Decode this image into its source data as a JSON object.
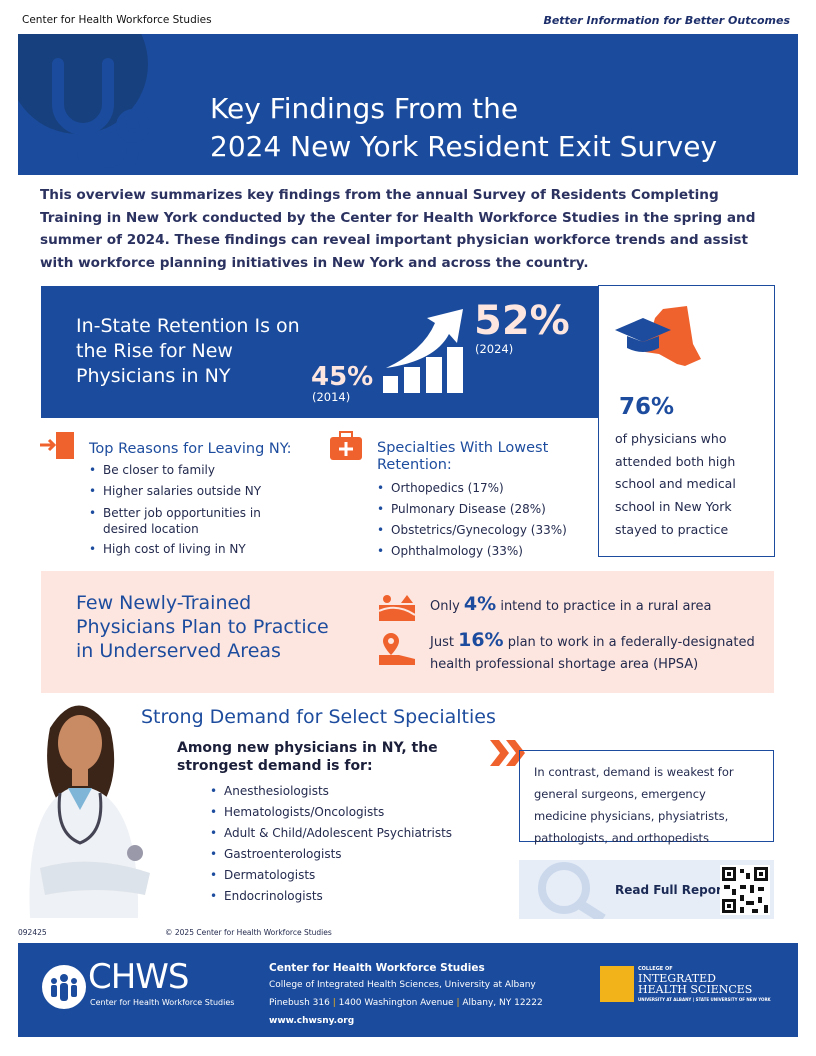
{
  "header": {
    "org": "Center for Health Workforce Studies",
    "tagline": "Better Information for Better Outcomes"
  },
  "banner": {
    "title_line1": "Key Findings From the",
    "title_line2": "2024 New York Resident Exit Survey",
    "icon": "stethoscope-icon"
  },
  "intro": "This overview summarizes key findings from the annual Survey of Residents Completing Training in New York conducted by the Center for Health Workforce Studies in the spring and summer of 2024. These findings can reveal important physician workforce trends and assist with workforce planning initiatives in New York and across the country.",
  "retention": {
    "title": "In-State Retention Is on the Rise for New Physicians in NY",
    "start_value": "45%",
    "start_year": "(2014)",
    "end_value": "52%",
    "end_year": "(2024)",
    "icon": "rising-bar-chart-icon"
  },
  "ny_box": {
    "value": "76%",
    "text": "of physicians who attended both high school and medical school in New York stayed to practice",
    "icon": "ny-state-graduation-cap-icon"
  },
  "leaving": {
    "heading": "Top Reasons for Leaving NY:",
    "icon": "exit-door-icon",
    "items": [
      "Be closer to family",
      "Higher salaries outside NY",
      "Better job opportunities in desired location",
      "High cost of living in NY"
    ]
  },
  "lowest": {
    "heading": "Specialties With Lowest Retention:",
    "icon": "medical-kit-icon",
    "items": [
      "Orthopedics (17%)",
      "Pulmonary Disease (28%)",
      "Obstetrics/Gynecology (33%)",
      "Ophthalmology (33%)"
    ]
  },
  "underserved": {
    "title": "Few Newly-Trained Physicians Plan to Practice in Underserved Areas",
    "rural": {
      "pre": "Only",
      "value": "4%",
      "post": "intend to practice in a rural area",
      "icon": "rural-farm-icon"
    },
    "hpsa": {
      "pre": "Just",
      "value": "16%",
      "post": "plan to work in a federally-designated health professional shortage area (HPSA)",
      "icon": "map-pin-icon"
    }
  },
  "demand": {
    "title": "Strong Demand for Select Specialties",
    "intro": "Among new physicians in NY, the strongest demand is for:",
    "items": [
      "Anesthesiologists",
      "Hematologists/Oncologists",
      "Adult & Child/Adolescent Psychiatrists",
      "Gastroenterologists",
      "Dermatologists",
      "Endocrinologists"
    ],
    "contrast": "In contrast, demand is weakest for general surgeons, emergency medicine physicians, physiatrists, pathologists, and orthopedists"
  },
  "report": {
    "label": "Read Full Report"
  },
  "doc_code": "092425",
  "copyright": "© 2025 Center for Health Workforce Studies",
  "footer": {
    "logo": "CHWS",
    "logo_sub": "Center for Health Workforce Studies",
    "name": "Center for Health Workforce Studies",
    "line1": "College of Integrated Health Sciences, University at Albany",
    "addr1": "Pinebush 316",
    "addr2": "1400 Washington Avenue",
    "addr3": "Albany, NY 12222",
    "url": "www.chwsny.org",
    "partner_small": "COLLEGE OF",
    "partner_big1": "INTEGRATED",
    "partner_big2": "HEALTH SCIENCES",
    "partner_sub": "UNIVERSITY AT ALBANY | STATE UNIVERSITY OF NEW YORK"
  },
  "colors": {
    "brand_blue": "#1b4b9c",
    "accent_orange": "#f0622d",
    "pink_bg": "#fde6df"
  }
}
